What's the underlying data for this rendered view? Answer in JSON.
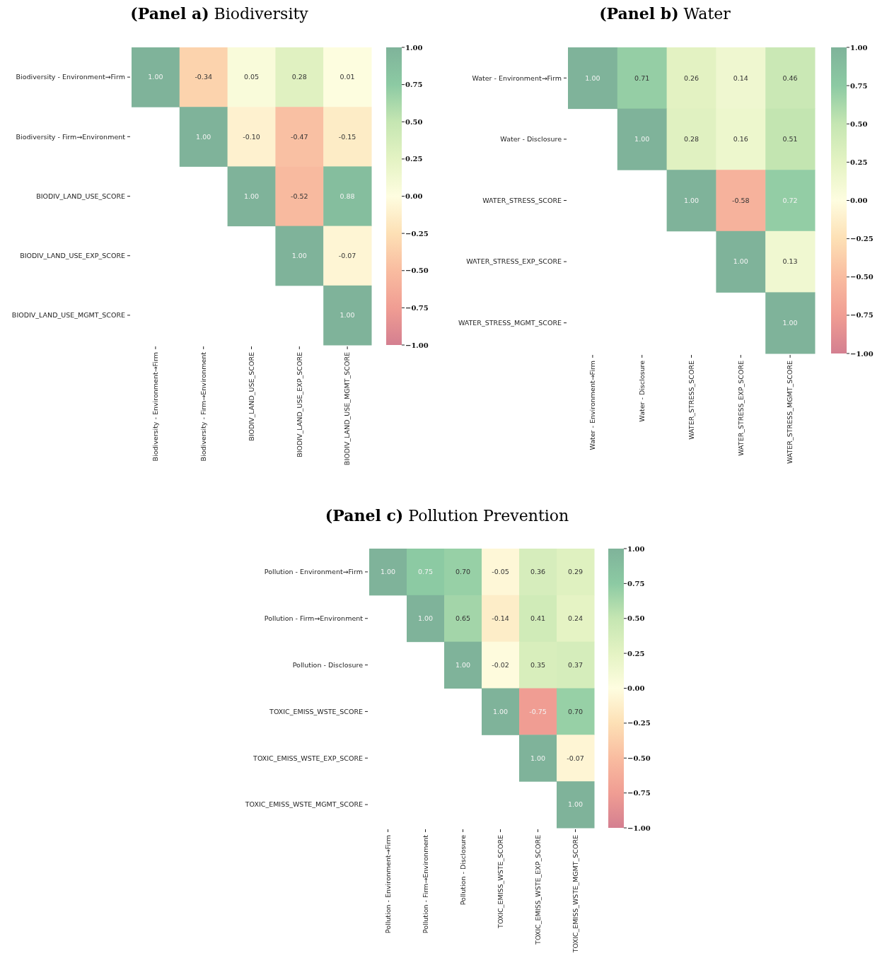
{
  "chart_data": [
    {
      "type": "heatmap",
      "title": "(Panel a) Biodiversity",
      "categories": [
        "Biodiversity - Environment→Firm",
        "Biodiversity - Firm→Environment",
        "BIODIV_LAND_USE_SCORE",
        "BIODIV_LAND_USE_EXP_SCORE",
        "BIODIV_LAND_USE_MGMT_SCORE"
      ],
      "y_categories": [
        "Biodiversity - Environment→Firm",
        "Biodiversity - Firm→Environment",
        "BIODIV_LAND_USE_SCORE",
        "BIODIV_LAND_USE_EXP_SCORE",
        "BIODIV_LAND_USE_MGMT_SCORE"
      ],
      "cells": [
        [
          1,
          -0.34,
          0.05,
          0.28,
          0.01
        ],
        [
          null,
          1,
          -0.1,
          -0.47,
          -0.15
        ],
        [
          null,
          null,
          1,
          -0.52,
          0.88
        ],
        [
          null,
          null,
          null,
          1,
          -0.07
        ],
        [
          null,
          null,
          null,
          null,
          1
        ]
      ],
      "cell_labels": [
        [
          "1.00",
          "-0.34",
          "0.05",
          "0.28",
          "0.01"
        ],
        [
          null,
          "1.00",
          "-0.10",
          "-0.47",
          "-0.15"
        ],
        [
          null,
          null,
          "1.00",
          "-0.52",
          "0.88"
        ],
        [
          null,
          null,
          null,
          "1.00",
          "-0.07"
        ],
        [
          null,
          null,
          null,
          null,
          "1.00"
        ]
      ],
      "clim": [
        -1,
        1
      ],
      "cticks": [
        {
          "value": -1,
          "label": "−1.00"
        },
        {
          "value": -0.75,
          "label": "−0.75"
        },
        {
          "value": -0.5,
          "label": "−0.50"
        },
        {
          "value": -0.25,
          "label": "−0.25"
        },
        {
          "value": 0,
          "label": "0.00"
        },
        {
          "value": 0.25,
          "label": "0.25"
        },
        {
          "value": 0.5,
          "label": "0.50"
        },
        {
          "value": 0.75,
          "label": "0.75"
        },
        {
          "value": 1,
          "label": "1.00"
        }
      ]
    },
    {
      "type": "heatmap",
      "title": "(Panel b) Water",
      "categories": [
        "Water - Environment→Firm",
        "Water - Disclosure",
        "WATER_STRESS_SCORE",
        "WATER_STRESS_EXP_SCORE",
        "WATER_STRESS_MGMT_SCORE"
      ],
      "y_categories": [
        "Water - Environment→Firm",
        "Water - Disclosure",
        "WATER_STRESS_SCORE",
        "WATER_STRESS_EXP_SCORE",
        "WATER_STRESS_MGMT_SCORE"
      ],
      "cells": [
        [
          1,
          0.71,
          0.26,
          0.14,
          0.46
        ],
        [
          null,
          1,
          0.28,
          0.16,
          0.51
        ],
        [
          null,
          null,
          1,
          -0.58,
          0.72
        ],
        [
          null,
          null,
          null,
          1,
          0.13
        ],
        [
          null,
          null,
          null,
          null,
          1
        ]
      ],
      "cell_labels": [
        [
          "1.00",
          "0.71",
          "0.26",
          "0.14",
          "0.46"
        ],
        [
          null,
          "1.00",
          "0.28",
          "0.16",
          "0.51"
        ],
        [
          null,
          null,
          "1.00",
          "-0.58",
          "0.72"
        ],
        [
          null,
          null,
          null,
          "1.00",
          "0.13"
        ],
        [
          null,
          null,
          null,
          null,
          "1.00"
        ]
      ],
      "clim": [
        -1,
        1
      ],
      "cticks": [
        {
          "value": -1,
          "label": "−1.00"
        },
        {
          "value": -0.75,
          "label": "−0.75"
        },
        {
          "value": -0.5,
          "label": "−0.50"
        },
        {
          "value": -0.25,
          "label": "−0.25"
        },
        {
          "value": 0,
          "label": "0.00"
        },
        {
          "value": 0.25,
          "label": "0.25"
        },
        {
          "value": 0.5,
          "label": "0.50"
        },
        {
          "value": 0.75,
          "label": "0.75"
        },
        {
          "value": 1,
          "label": "1.00"
        }
      ]
    },
    {
      "type": "heatmap",
      "title": "(Panel c) Pollution Prevention",
      "categories": [
        "Pollution - Environment→Firm",
        "Pollution - Firm→Environment",
        "Pollution - Disclosure",
        "TOXIC_EMISS_WSTE_SCORE",
        "TOXIC_EMISS_WSTE_EXP_SCORE",
        "TOXIC_EMISS_WSTE_MGMT_SCORE"
      ],
      "y_categories": [
        "Pollution - Environment→Firm",
        "Pollution - Firm→Environment",
        "Pollution - Disclosure",
        "TOXIC_EMISS_WSTE_SCORE",
        "TOXIC_EMISS_WSTE_EXP_SCORE",
        "TOXIC_EMISS_WSTE_MGMT_SCORE"
      ],
      "cells": [
        [
          1,
          0.75,
          0.7,
          -0.05,
          0.36,
          0.29
        ],
        [
          null,
          1,
          0.65,
          -0.14,
          0.41,
          0.24
        ],
        [
          null,
          null,
          1,
          -0.02,
          0.35,
          0.37
        ],
        [
          null,
          null,
          null,
          1,
          -0.75,
          0.7
        ],
        [
          null,
          null,
          null,
          null,
          1,
          -0.07
        ],
        [
          null,
          null,
          null,
          null,
          null,
          1
        ]
      ],
      "cell_labels": [
        [
          "1.00",
          "0.75",
          "0.70",
          "-0.05",
          "0.36",
          "0.29"
        ],
        [
          null,
          "1.00",
          "0.65",
          "-0.14",
          "0.41",
          "0.24"
        ],
        [
          null,
          null,
          "1.00",
          "-0.02",
          "0.35",
          "0.37"
        ],
        [
          null,
          null,
          null,
          "1.00",
          "-0.75",
          "0.70"
        ],
        [
          null,
          null,
          null,
          null,
          "1.00",
          "-0.07"
        ],
        [
          null,
          null,
          null,
          null,
          null,
          "1.00"
        ]
      ],
      "clim": [
        -1,
        1
      ],
      "cticks": [
        {
          "value": -1,
          "label": "−1.00"
        },
        {
          "value": -0.75,
          "label": "−0.75"
        },
        {
          "value": -0.5,
          "label": "−0.50"
        },
        {
          "value": -0.25,
          "label": "−0.25"
        },
        {
          "value": 0,
          "label": "0.00"
        },
        {
          "value": 0.25,
          "label": "0.25"
        },
        {
          "value": 0.5,
          "label": "0.50"
        },
        {
          "value": 0.75,
          "label": "0.75"
        },
        {
          "value": 1,
          "label": "1.00"
        }
      ]
    }
  ]
}
